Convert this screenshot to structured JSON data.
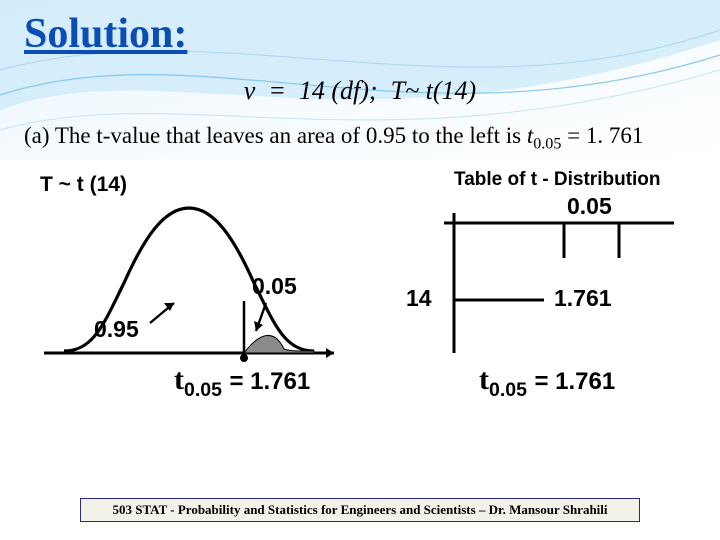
{
  "title": "Solution:",
  "formula_html": "&nu; &nbsp;= &nbsp;14 (<i>df</i>); &nbsp;<i>T</i>~ <i>t</i>(14)",
  "part_a": {
    "prefix": "(a) The t-value that leaves an area of 0.95 to the left is ",
    "t_sym": "t",
    "t_sub": "0.05",
    "eq": " = 1. 761"
  },
  "fig_left": {
    "dist_label": "T ~ t (14)",
    "area_left": "0.95",
    "area_right": "0.05",
    "t_label": "t",
    "t_sub": "0.05",
    "t_val": "= 1.761",
    "curve_stroke": "#000000",
    "curve_stroke_width": 3.2,
    "tail_fill": "#888888",
    "axis_color": "#000000"
  },
  "fig_right": {
    "table_title": "Table of t - Distribution",
    "alpha": "0.05",
    "df": "14",
    "value": "1.761",
    "t_label": "t",
    "t_sub": "0.05",
    "t_val": "= 1.761",
    "line_color": "#000000",
    "line_width": 3
  },
  "footer": "503 STAT - Probability and Statistics for Engineers and Scientists – Dr. Mansour Shrahili",
  "background": {
    "wave_colors": [
      "#dff0fb",
      "#cfe8fa",
      "#b7dcf7",
      "#9fd0f4"
    ],
    "wave_line": "#5aa8e0"
  }
}
